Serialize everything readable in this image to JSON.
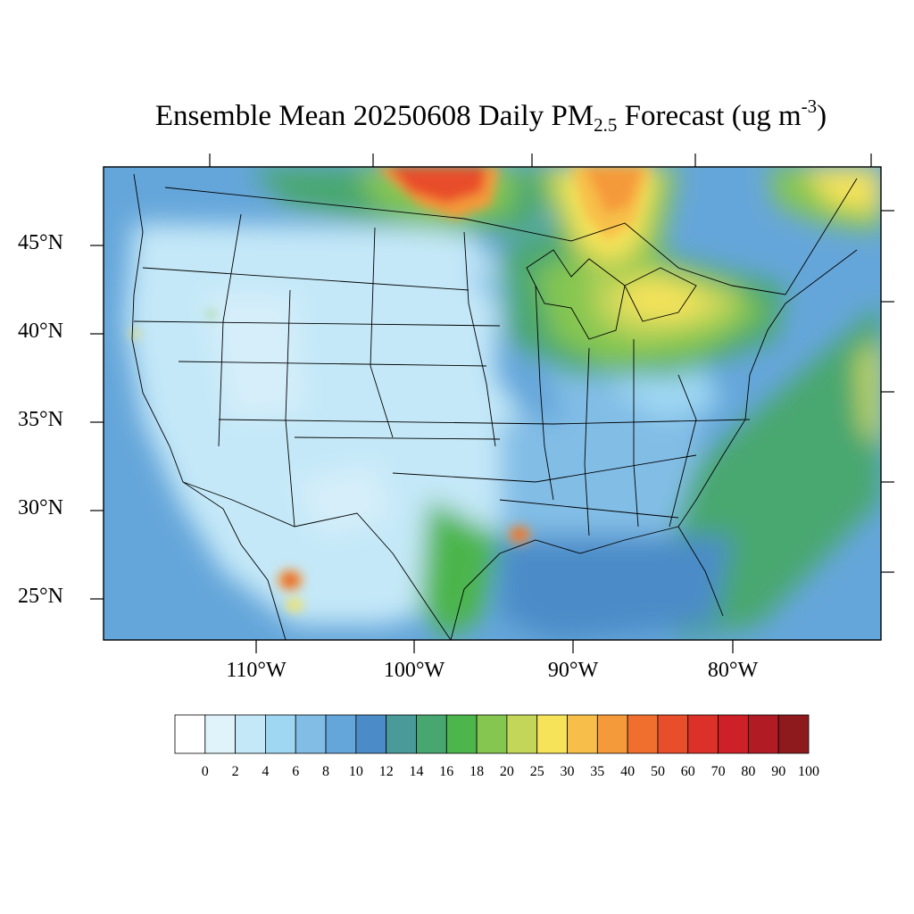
{
  "title": {
    "prefix": "Ensemble Mean 20250608 Daily PM",
    "subscript": "2.5",
    "mid": " Forecast (ug m",
    "superscript": "-3",
    "suffix": ")"
  },
  "lat_labels": [
    "45°N",
    "40°N",
    "35°N",
    "30°N",
    "25°N"
  ],
  "lon_labels": [
    "110°W",
    "100°W",
    "90°W",
    "80°W"
  ],
  "colorbar": {
    "labels": [
      "0",
      "2",
      "4",
      "6",
      "8",
      "10",
      "12",
      "14",
      "16",
      "18",
      "20",
      "25",
      "30",
      "35",
      "40",
      "50",
      "60",
      "70",
      "80",
      "90",
      "100"
    ],
    "colors": [
      "#ffffff",
      "#e0f3fb",
      "#c4e8f8",
      "#9fd7f3",
      "#82bde6",
      "#65a6da",
      "#4b8cc8",
      "#4a9a9a",
      "#48a770",
      "#4cb54c",
      "#85c651",
      "#c4d65a",
      "#f6e35a",
      "#f7bf4a",
      "#f59a3a",
      "#f06e2e",
      "#e84e2a",
      "#dc3128",
      "#cd2027",
      "#b11c24",
      "#8f1a1e"
    ]
  },
  "colors": {
    "background_ocean": "#65a6da",
    "land_west": "#c4e8f8",
    "frame": "#000000"
  }
}
